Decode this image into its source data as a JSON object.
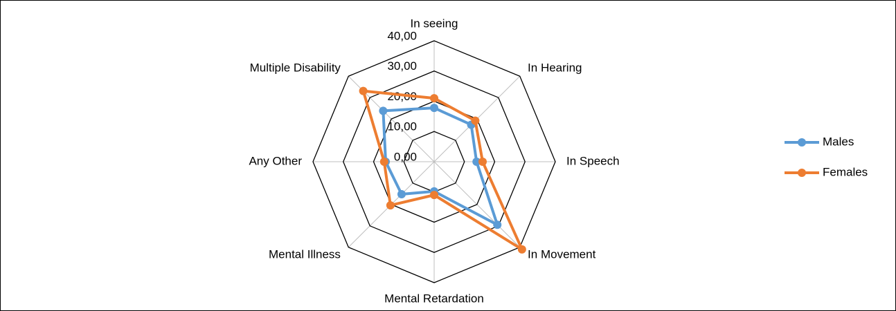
{
  "chart_data": {
    "type": "radar",
    "categories": [
      "In seeing",
      "In Hearing",
      "In Speech",
      "In Movement",
      "Mental Retardation",
      "Mental Illness",
      "Any Other",
      "Multiple Disability"
    ],
    "series": [
      {
        "name": "Males",
        "color": "#5b9bd5",
        "values": [
          17.8,
          17.3,
          14.0,
          29.5,
          9.8,
          15.2,
          16.0,
          23.8
        ]
      },
      {
        "name": "Females",
        "color": "#ed7d31",
        "values": [
          21.0,
          19.2,
          16.0,
          41.0,
          11.0,
          20.4,
          16.5,
          33.1
        ]
      }
    ],
    "ylim": [
      0,
      40
    ],
    "yticks": [
      {
        "value": 0,
        "label": "0,00"
      },
      {
        "value": 10,
        "label": "10,00"
      },
      {
        "value": 20,
        "label": "20,00"
      },
      {
        "value": 30,
        "label": "30,00"
      },
      {
        "value": 40,
        "label": "40,00"
      }
    ],
    "grid": true,
    "legend": "right"
  }
}
